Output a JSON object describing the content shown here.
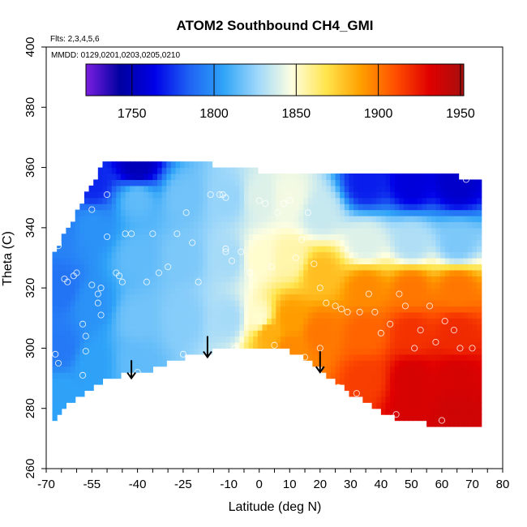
{
  "chart_data": {
    "type": "heatmap",
    "title": "ATOM2 Southbound CH4_GMI",
    "flights_label": "Flts: 2,3,4,5,6",
    "dates_label": "MMDD: 0129,0201,0203,0205,0210",
    "xlabel": "Latitude (deg N)",
    "ylabel": "Theta (C)",
    "xlim": [
      -70,
      80
    ],
    "ylim": [
      260,
      400
    ],
    "x_ticks": [
      -70,
      -55,
      -40,
      -25,
      -10,
      0,
      10,
      20,
      30,
      40,
      50,
      60,
      70,
      80
    ],
    "x_minor_step": 5,
    "y_ticks": [
      260,
      280,
      300,
      320,
      340,
      360,
      380,
      400
    ],
    "colorbar": {
      "min": 1722,
      "max": 1952,
      "ticks": [
        1750,
        1800,
        1850,
        1900,
        1950
      ],
      "colors": [
        "#7a1fe0",
        "#0000a0",
        "#0000e8",
        "#1f62f4",
        "#2fa4f8",
        "#9fd8fa",
        "#ffffe0",
        "#ffe44c",
        "#ffa000",
        "#ff5000",
        "#e00000",
        "#a80f0f"
      ]
    },
    "data_extent": {
      "lat_range": [
        -68,
        72
      ],
      "top_theta_profile": {
        "lat": [
          -68,
          -60,
          -52,
          -50,
          -30,
          -20,
          -15,
          -10,
          -5,
          0,
          10,
          20,
          25,
          35,
          45,
          55,
          65,
          70,
          72
        ],
        "theta": [
          330,
          345,
          360,
          362,
          362,
          361,
          361,
          360,
          360,
          359,
          358,
          358,
          358,
          358,
          357,
          357,
          357,
          356,
          356
        ]
      },
      "bottom_theta_profile": {
        "lat": [
          -68,
          -62,
          -55,
          -50,
          -45,
          -40,
          -35,
          -30,
          -25,
          -20,
          -15,
          -10,
          -5,
          0,
          5,
          10,
          15,
          20,
          25,
          30,
          35,
          40,
          45,
          50,
          55,
          60,
          65,
          70,
          72
        ],
        "theta": [
          275,
          282,
          287,
          290,
          291,
          292,
          293,
          295,
          297,
          298,
          299,
          300,
          301,
          300,
          300,
          299,
          297,
          293,
          289,
          285,
          282,
          279,
          277,
          276,
          275,
          274,
          274,
          274,
          274
        ]
      }
    },
    "field_anchors": [
      {
        "lat": -65,
        "theta": 340,
        "ch4": 1795
      },
      {
        "lat": -65,
        "theta": 320,
        "ch4": 1790
      },
      {
        "lat": -65,
        "theta": 300,
        "ch4": 1792
      },
      {
        "lat": -65,
        "theta": 285,
        "ch4": 1805
      },
      {
        "lat": -55,
        "theta": 355,
        "ch4": 1772
      },
      {
        "lat": -55,
        "theta": 340,
        "ch4": 1800
      },
      {
        "lat": -55,
        "theta": 315,
        "ch4": 1800
      },
      {
        "lat": -55,
        "theta": 295,
        "ch4": 1805
      },
      {
        "lat": -40,
        "theta": 360,
        "ch4": 1750
      },
      {
        "lat": -40,
        "theta": 350,
        "ch4": 1815
      },
      {
        "lat": -40,
        "theta": 330,
        "ch4": 1815
      },
      {
        "lat": -40,
        "theta": 310,
        "ch4": 1818
      },
      {
        "lat": -40,
        "theta": 295,
        "ch4": 1815
      },
      {
        "lat": -25,
        "theta": 350,
        "ch4": 1818
      },
      {
        "lat": -25,
        "theta": 330,
        "ch4": 1820
      },
      {
        "lat": -25,
        "theta": 310,
        "ch4": 1822
      },
      {
        "lat": -10,
        "theta": 350,
        "ch4": 1825
      },
      {
        "lat": -10,
        "theta": 330,
        "ch4": 1828
      },
      {
        "lat": -10,
        "theta": 310,
        "ch4": 1828
      },
      {
        "lat": 0,
        "theta": 350,
        "ch4": 1840
      },
      {
        "lat": 0,
        "theta": 330,
        "ch4": 1850
      },
      {
        "lat": 0,
        "theta": 310,
        "ch4": 1850
      },
      {
        "lat": 3,
        "theta": 305,
        "ch4": 1885
      },
      {
        "lat": 10,
        "theta": 350,
        "ch4": 1845
      },
      {
        "lat": 10,
        "theta": 330,
        "ch4": 1855
      },
      {
        "lat": 10,
        "theta": 310,
        "ch4": 1890
      },
      {
        "lat": 10,
        "theta": 300,
        "ch4": 1895
      },
      {
        "lat": 20,
        "theta": 345,
        "ch4": 1835
      },
      {
        "lat": 20,
        "theta": 325,
        "ch4": 1880
      },
      {
        "lat": 20,
        "theta": 305,
        "ch4": 1900
      },
      {
        "lat": 35,
        "theta": 355,
        "ch4": 1770
      },
      {
        "lat": 35,
        "theta": 335,
        "ch4": 1840
      },
      {
        "lat": 35,
        "theta": 320,
        "ch4": 1895
      },
      {
        "lat": 35,
        "theta": 305,
        "ch4": 1905
      },
      {
        "lat": 35,
        "theta": 290,
        "ch4": 1915
      },
      {
        "lat": 50,
        "theta": 355,
        "ch4": 1760
      },
      {
        "lat": 50,
        "theta": 335,
        "ch4": 1830
      },
      {
        "lat": 50,
        "theta": 320,
        "ch4": 1900
      },
      {
        "lat": 50,
        "theta": 305,
        "ch4": 1918
      },
      {
        "lat": 50,
        "theta": 290,
        "ch4": 1935
      },
      {
        "lat": 50,
        "theta": 280,
        "ch4": 1935
      },
      {
        "lat": 65,
        "theta": 355,
        "ch4": 1755
      },
      {
        "lat": 65,
        "theta": 335,
        "ch4": 1820
      },
      {
        "lat": 65,
        "theta": 320,
        "ch4": 1900
      },
      {
        "lat": 65,
        "theta": 305,
        "ch4": 1920
      },
      {
        "lat": 65,
        "theta": 290,
        "ch4": 1935
      },
      {
        "lat": 65,
        "theta": 278,
        "ch4": 1938
      }
    ],
    "observation_points": [
      {
        "lat": -67,
        "theta": 337
      },
      {
        "lat": -66,
        "theta": 334
      },
      {
        "lat": -67,
        "theta": 298
      },
      {
        "lat": -66,
        "theta": 295
      },
      {
        "lat": -64,
        "theta": 323
      },
      {
        "lat": -63,
        "theta": 322
      },
      {
        "lat": -61,
        "theta": 324
      },
      {
        "lat": -60,
        "theta": 325
      },
      {
        "lat": -58,
        "theta": 308
      },
      {
        "lat": -57,
        "theta": 304
      },
      {
        "lat": -57,
        "theta": 299
      },
      {
        "lat": -58,
        "theta": 291
      },
      {
        "lat": -55,
        "theta": 346
      },
      {
        "lat": -55,
        "theta": 321
      },
      {
        "lat": -53,
        "theta": 318
      },
      {
        "lat": -53,
        "theta": 315
      },
      {
        "lat": -52,
        "theta": 311
      },
      {
        "lat": -52,
        "theta": 320
      },
      {
        "lat": -50,
        "theta": 337
      },
      {
        "lat": -50,
        "theta": 351
      },
      {
        "lat": -47,
        "theta": 325
      },
      {
        "lat": -46,
        "theta": 324
      },
      {
        "lat": -45,
        "theta": 322
      },
      {
        "lat": -44,
        "theta": 338
      },
      {
        "lat": -42,
        "theta": 338
      },
      {
        "lat": -37,
        "theta": 322
      },
      {
        "lat": -35,
        "theta": 338
      },
      {
        "lat": -33,
        "theta": 325
      },
      {
        "lat": -30,
        "theta": 327
      },
      {
        "lat": -27,
        "theta": 338
      },
      {
        "lat": -24,
        "theta": 345
      },
      {
        "lat": -22,
        "theta": 335
      },
      {
        "lat": -20,
        "theta": 322
      },
      {
        "lat": -16,
        "theta": 351
      },
      {
        "lat": -13,
        "theta": 351
      },
      {
        "lat": -12,
        "theta": 351
      },
      {
        "lat": -11,
        "theta": 350
      },
      {
        "lat": -11,
        "theta": 333
      },
      {
        "lat": -11,
        "theta": 332
      },
      {
        "lat": -9,
        "theta": 329
      },
      {
        "lat": -6,
        "theta": 332
      },
      {
        "lat": -3,
        "theta": 325
      },
      {
        "lat": 0,
        "theta": 349
      },
      {
        "lat": 2,
        "theta": 348
      },
      {
        "lat": 4,
        "theta": 327
      },
      {
        "lat": 6,
        "theta": 345
      },
      {
        "lat": 8,
        "theta": 348
      },
      {
        "lat": 10,
        "theta": 349
      },
      {
        "lat": 12,
        "theta": 330
      },
      {
        "lat": 14,
        "theta": 336
      },
      {
        "lat": 16,
        "theta": 345
      },
      {
        "lat": 18,
        "theta": 328
      },
      {
        "lat": 20,
        "theta": 320
      },
      {
        "lat": 22,
        "theta": 315
      },
      {
        "lat": 25,
        "theta": 314
      },
      {
        "lat": 27,
        "theta": 313
      },
      {
        "lat": 29,
        "theta": 312
      },
      {
        "lat": 33,
        "theta": 312
      },
      {
        "lat": 36,
        "theta": 318
      },
      {
        "lat": 38,
        "theta": 312
      },
      {
        "lat": 40,
        "theta": 305
      },
      {
        "lat": 43,
        "theta": 308
      },
      {
        "lat": 46,
        "theta": 318
      },
      {
        "lat": 48,
        "theta": 314
      },
      {
        "lat": 51,
        "theta": 300
      },
      {
        "lat": 53,
        "theta": 306
      },
      {
        "lat": 56,
        "theta": 314
      },
      {
        "lat": 58,
        "theta": 302
      },
      {
        "lat": 61,
        "theta": 309
      },
      {
        "lat": 64,
        "theta": 306
      },
      {
        "lat": 66,
        "theta": 300
      },
      {
        "lat": 68,
        "theta": 356
      },
      {
        "lat": 70,
        "theta": 300
      },
      {
        "lat": 20,
        "theta": 300
      },
      {
        "lat": 15,
        "theta": 297
      },
      {
        "lat": 26,
        "theta": 287
      },
      {
        "lat": 32,
        "theta": 285
      },
      {
        "lat": 45,
        "theta": 278
      },
      {
        "lat": 52,
        "theta": 274
      },
      {
        "lat": 60,
        "theta": 276
      },
      {
        "lat": -40,
        "theta": 292
      },
      {
        "lat": -25,
        "theta": 298
      },
      {
        "lat": -8,
        "theta": 300
      },
      {
        "lat": 5,
        "theta": 301
      }
    ],
    "arrows": [
      {
        "lat": -42,
        "theta_top": 296,
        "theta_bottom": 290
      },
      {
        "lat": -17,
        "theta_top": 304,
        "theta_bottom": 297
      },
      {
        "lat": 20,
        "theta_top": 299,
        "theta_bottom": 292
      }
    ]
  }
}
